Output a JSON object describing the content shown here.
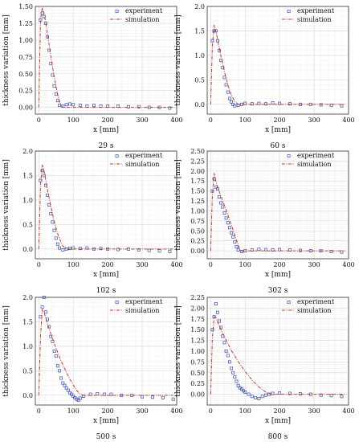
{
  "chart_data": [
    {
      "type": "line",
      "caption": "29 s",
      "xlabel": "x [mm]",
      "ylabel": "thickness variation [mm]",
      "xlim": [
        -10,
        400
      ],
      "ylim": [
        -0.1,
        1.5
      ],
      "xticks": [
        "0",
        "100",
        "200",
        "300",
        "400"
      ],
      "yticks": [
        "0.00",
        "0.25",
        "0.50",
        "0.75",
        "1.00",
        "1.25",
        "1.50"
      ],
      "legend": [
        "experiment",
        "simulation"
      ],
      "legend_position": "top-right",
      "grid": true,
      "series": [
        {
          "name": "experiment",
          "style": "markers",
          "x": [
            5,
            10,
            15,
            20,
            25,
            30,
            35,
            40,
            45,
            50,
            55,
            60,
            70,
            80,
            90,
            100,
            120,
            140,
            160,
            180,
            200,
            230,
            260,
            290,
            320,
            350,
            380
          ],
          "y": [
            1.3,
            1.4,
            1.35,
            1.25,
            1.05,
            0.85,
            0.65,
            0.48,
            0.32,
            0.2,
            0.1,
            0.03,
            0.02,
            0.04,
            0.05,
            0.04,
            0.03,
            0.02,
            0.03,
            0.02,
            0.02,
            0.02,
            0.01,
            0.01,
            0.0,
            0.0,
            -0.01
          ]
        },
        {
          "name": "simulation",
          "style": "dashdot",
          "x": [
            0,
            5,
            10,
            15,
            20,
            25,
            30,
            35,
            40,
            45,
            50,
            55,
            60,
            65,
            70,
            80,
            100,
            150,
            200,
            250,
            300,
            350,
            390
          ],
          "y": [
            0.0,
            1.3,
            1.48,
            1.4,
            1.26,
            1.1,
            0.93,
            0.76,
            0.6,
            0.45,
            0.31,
            0.19,
            0.09,
            0.03,
            0.0,
            0.0,
            0.0,
            0.0,
            0.0,
            0.0,
            0.0,
            0.0,
            0.0
          ]
        }
      ]
    },
    {
      "type": "line",
      "caption": "60 s",
      "xlabel": "x [mm]",
      "ylabel": "thickness variation [mm]",
      "xlim": [
        -10,
        400
      ],
      "ylim": [
        -0.2,
        2.0
      ],
      "xticks": [
        "0",
        "100",
        "200",
        "300",
        "400"
      ],
      "yticks": [
        "0.0",
        "0.5",
        "1.0",
        "1.5",
        "2.0"
      ],
      "legend": [
        "experiment",
        "simulation"
      ],
      "legend_position": "top-right",
      "grid": true,
      "series": [
        {
          "name": "experiment",
          "style": "markers",
          "x": [
            5,
            10,
            15,
            20,
            25,
            30,
            35,
            40,
            45,
            50,
            55,
            60,
            65,
            70,
            80,
            90,
            100,
            120,
            140,
            160,
            180,
            200,
            230,
            260,
            290,
            320,
            350,
            380
          ],
          "y": [
            1.3,
            1.5,
            1.5,
            1.3,
            1.1,
            0.9,
            0.75,
            0.55,
            0.4,
            0.25,
            0.12,
            0.05,
            0.0,
            -0.03,
            -0.02,
            0.0,
            0.02,
            0.01,
            0.02,
            0.01,
            0.03,
            0.02,
            0.01,
            0.0,
            0.0,
            -0.01,
            -0.02,
            -0.03
          ]
        },
        {
          "name": "simulation",
          "style": "dashdot",
          "x": [
            0,
            5,
            10,
            15,
            20,
            25,
            30,
            35,
            40,
            45,
            50,
            55,
            60,
            70,
            80,
            90,
            100,
            150,
            200,
            250,
            300,
            350,
            390
          ],
          "y": [
            0.0,
            1.2,
            1.62,
            1.5,
            1.33,
            1.15,
            0.98,
            0.82,
            0.67,
            0.53,
            0.4,
            0.29,
            0.19,
            0.06,
            0.0,
            0.0,
            0.0,
            0.0,
            0.0,
            0.0,
            0.0,
            0.0,
            0.0
          ]
        }
      ]
    },
    {
      "type": "line",
      "caption": "102 s",
      "xlabel": "x [mm]",
      "ylabel": "thickness variation [mm]",
      "xlim": [
        -10,
        400
      ],
      "ylim": [
        -0.2,
        2.0
      ],
      "xticks": [
        "0",
        "100",
        "200",
        "300",
        "400"
      ],
      "yticks": [
        "0.0",
        "0.5",
        "1.0",
        "1.5",
        "2.0"
      ],
      "legend": [
        "experiment",
        "simulation"
      ],
      "legend_position": "top-right",
      "grid": true,
      "series": [
        {
          "name": "experiment",
          "style": "markers",
          "x": [
            5,
            10,
            15,
            20,
            25,
            30,
            35,
            40,
            45,
            50,
            55,
            60,
            70,
            80,
            90,
            100,
            120,
            140,
            160,
            180,
            200,
            230,
            260,
            290,
            320,
            350,
            380
          ],
          "y": [
            1.4,
            1.6,
            1.5,
            1.3,
            1.1,
            0.9,
            0.72,
            0.55,
            0.38,
            0.22,
            0.1,
            0.02,
            -0.02,
            0.0,
            0.01,
            0.02,
            0.01,
            0.02,
            0.0,
            0.01,
            0.0,
            -0.01,
            0.0,
            -0.02,
            -0.03,
            -0.04,
            -0.05
          ]
        },
        {
          "name": "simulation",
          "style": "dashdot",
          "x": [
            0,
            5,
            10,
            15,
            20,
            25,
            30,
            35,
            40,
            45,
            50,
            55,
            60,
            70,
            80,
            90,
            100,
            150,
            200,
            250,
            300,
            350,
            390
          ],
          "y": [
            0.0,
            1.3,
            1.72,
            1.6,
            1.42,
            1.22,
            1.04,
            0.87,
            0.71,
            0.56,
            0.43,
            0.31,
            0.21,
            0.06,
            0.0,
            0.0,
            0.0,
            0.0,
            0.0,
            0.0,
            0.0,
            0.0,
            0.0
          ]
        }
      ]
    },
    {
      "type": "line",
      "caption": "302 s",
      "xlabel": "x [mm]",
      "ylabel": "thickness variation [mm]",
      "xlim": [
        -10,
        400
      ],
      "ylim": [
        -0.2,
        2.5
      ],
      "xticks": [
        "0",
        "100",
        "200",
        "300",
        "400"
      ],
      "yticks": [
        "0.00",
        "0.25",
        "0.50",
        "0.75",
        "1.00",
        "1.25",
        "1.50",
        "1.75",
        "2.00",
        "2.25",
        "2.50"
      ],
      "legend": [
        "experiment",
        "simulation"
      ],
      "legend_position": "top-right",
      "grid": true,
      "series": [
        {
          "name": "experiment",
          "style": "markers",
          "x": [
            5,
            10,
            15,
            20,
            25,
            30,
            35,
            40,
            45,
            50,
            55,
            60,
            65,
            70,
            75,
            80,
            90,
            100,
            120,
            140,
            160,
            180,
            200,
            230,
            260,
            290,
            320,
            350,
            380
          ],
          "y": [
            1.5,
            1.8,
            1.6,
            1.55,
            1.35,
            1.2,
            1.1,
            0.95,
            0.82,
            0.7,
            0.58,
            0.45,
            0.35,
            0.22,
            0.1,
            0.02,
            -0.02,
            0.0,
            0.02,
            0.04,
            0.03,
            0.02,
            0.03,
            0.02,
            0.01,
            0.0,
            0.0,
            -0.02,
            -0.03
          ]
        },
        {
          "name": "simulation",
          "style": "dashdot",
          "x": [
            0,
            5,
            10,
            15,
            20,
            30,
            40,
            50,
            60,
            70,
            80,
            85,
            90,
            100,
            150,
            200,
            250,
            300,
            350,
            390
          ],
          "y": [
            0.0,
            1.4,
            1.95,
            1.75,
            1.6,
            1.37,
            1.14,
            0.9,
            0.65,
            0.4,
            0.14,
            0.02,
            0.0,
            0.0,
            0.0,
            0.0,
            0.0,
            0.0,
            0.0,
            0.0
          ]
        }
      ]
    },
    {
      "type": "line",
      "caption": "500 s",
      "xlabel": "x [mm]",
      "ylabel": "thickness variation [mm]",
      "xlim": [
        -10,
        400
      ],
      "ylim": [
        -0.2,
        2.0
      ],
      "xticks": [
        "0",
        "100",
        "200",
        "300",
        "400"
      ],
      "yticks": [
        "0.0",
        "0.5",
        "1.0",
        "1.5",
        "2.0"
      ],
      "legend": [
        "experiment",
        "simulation"
      ],
      "legend_position": "top-right",
      "grid": true,
      "series": [
        {
          "name": "experiment",
          "style": "markers",
          "x": [
            5,
            10,
            15,
            20,
            25,
            30,
            35,
            40,
            45,
            50,
            55,
            60,
            65,
            70,
            75,
            80,
            85,
            90,
            95,
            100,
            105,
            110,
            115,
            120,
            130,
            150,
            170,
            190,
            210,
            240,
            270,
            300,
            330,
            360,
            390
          ],
          "y": [
            1.6,
            1.8,
            2.0,
            1.7,
            1.55,
            1.4,
            1.2,
            1.1,
            0.9,
            0.8,
            0.6,
            0.5,
            0.35,
            0.25,
            0.2,
            0.15,
            0.1,
            0.05,
            0.02,
            -0.02,
            -0.05,
            -0.08,
            -0.1,
            -0.06,
            -0.02,
            0.02,
            0.03,
            0.02,
            0.02,
            0.0,
            0.0,
            -0.03,
            -0.04,
            -0.05,
            -0.08
          ]
        },
        {
          "name": "simulation",
          "style": "dashdot",
          "x": [
            0,
            5,
            10,
            15,
            20,
            30,
            40,
            50,
            60,
            70,
            80,
            90,
            100,
            110,
            120,
            130,
            150,
            200,
            250,
            300,
            350,
            390
          ],
          "y": [
            0.0,
            1.2,
            1.75,
            1.7,
            1.58,
            1.36,
            1.15,
            0.96,
            0.78,
            0.62,
            0.47,
            0.33,
            0.21,
            0.1,
            0.02,
            0.0,
            0.0,
            0.0,
            0.0,
            0.0,
            0.0,
            0.0
          ]
        }
      ]
    },
    {
      "type": "line",
      "caption": "800 s",
      "xlabel": "x [mm]",
      "ylabel": "thickness variation [mm]",
      "xlim": [
        -10,
        400
      ],
      "ylim": [
        -0.25,
        2.25
      ],
      "xticks": [
        "0",
        "100",
        "200",
        "300",
        "400"
      ],
      "yticks": [
        "0.00",
        "0.25",
        "0.50",
        "0.75",
        "1.00",
        "1.25",
        "1.50",
        "1.75",
        "2.00",
        "2.25"
      ],
      "legend": [
        "experiment",
        "simulation"
      ],
      "legend_position": "top-right",
      "grid": true,
      "series": [
        {
          "name": "experiment",
          "style": "markers",
          "x": [
            5,
            10,
            15,
            20,
            25,
            30,
            35,
            40,
            45,
            50,
            55,
            60,
            65,
            70,
            75,
            80,
            85,
            90,
            95,
            100,
            110,
            120,
            130,
            140,
            150,
            160,
            170,
            180,
            200,
            230,
            260,
            290,
            320,
            350,
            380
          ],
          "y": [
            1.5,
            1.8,
            2.1,
            1.9,
            1.7,
            1.55,
            1.35,
            1.2,
            1.0,
            0.9,
            0.75,
            0.6,
            0.5,
            0.4,
            0.3,
            0.2,
            0.15,
            0.12,
            0.08,
            0.05,
            0.0,
            -0.05,
            -0.08,
            -0.1,
            -0.05,
            -0.02,
            0.0,
            0.02,
            0.03,
            0.02,
            0.01,
            0.0,
            -0.02,
            -0.03,
            -0.05
          ]
        },
        {
          "name": "simulation",
          "style": "dashdot",
          "x": [
            0,
            5,
            10,
            15,
            20,
            30,
            40,
            60,
            80,
            100,
            120,
            140,
            160,
            175,
            200,
            250,
            300,
            350,
            390
          ],
          "y": [
            0.0,
            1.3,
            1.8,
            1.78,
            1.68,
            1.5,
            1.33,
            1.02,
            0.76,
            0.53,
            0.33,
            0.17,
            0.05,
            0.0,
            0.0,
            0.0,
            0.0,
            0.0,
            0.0
          ]
        }
      ]
    }
  ]
}
